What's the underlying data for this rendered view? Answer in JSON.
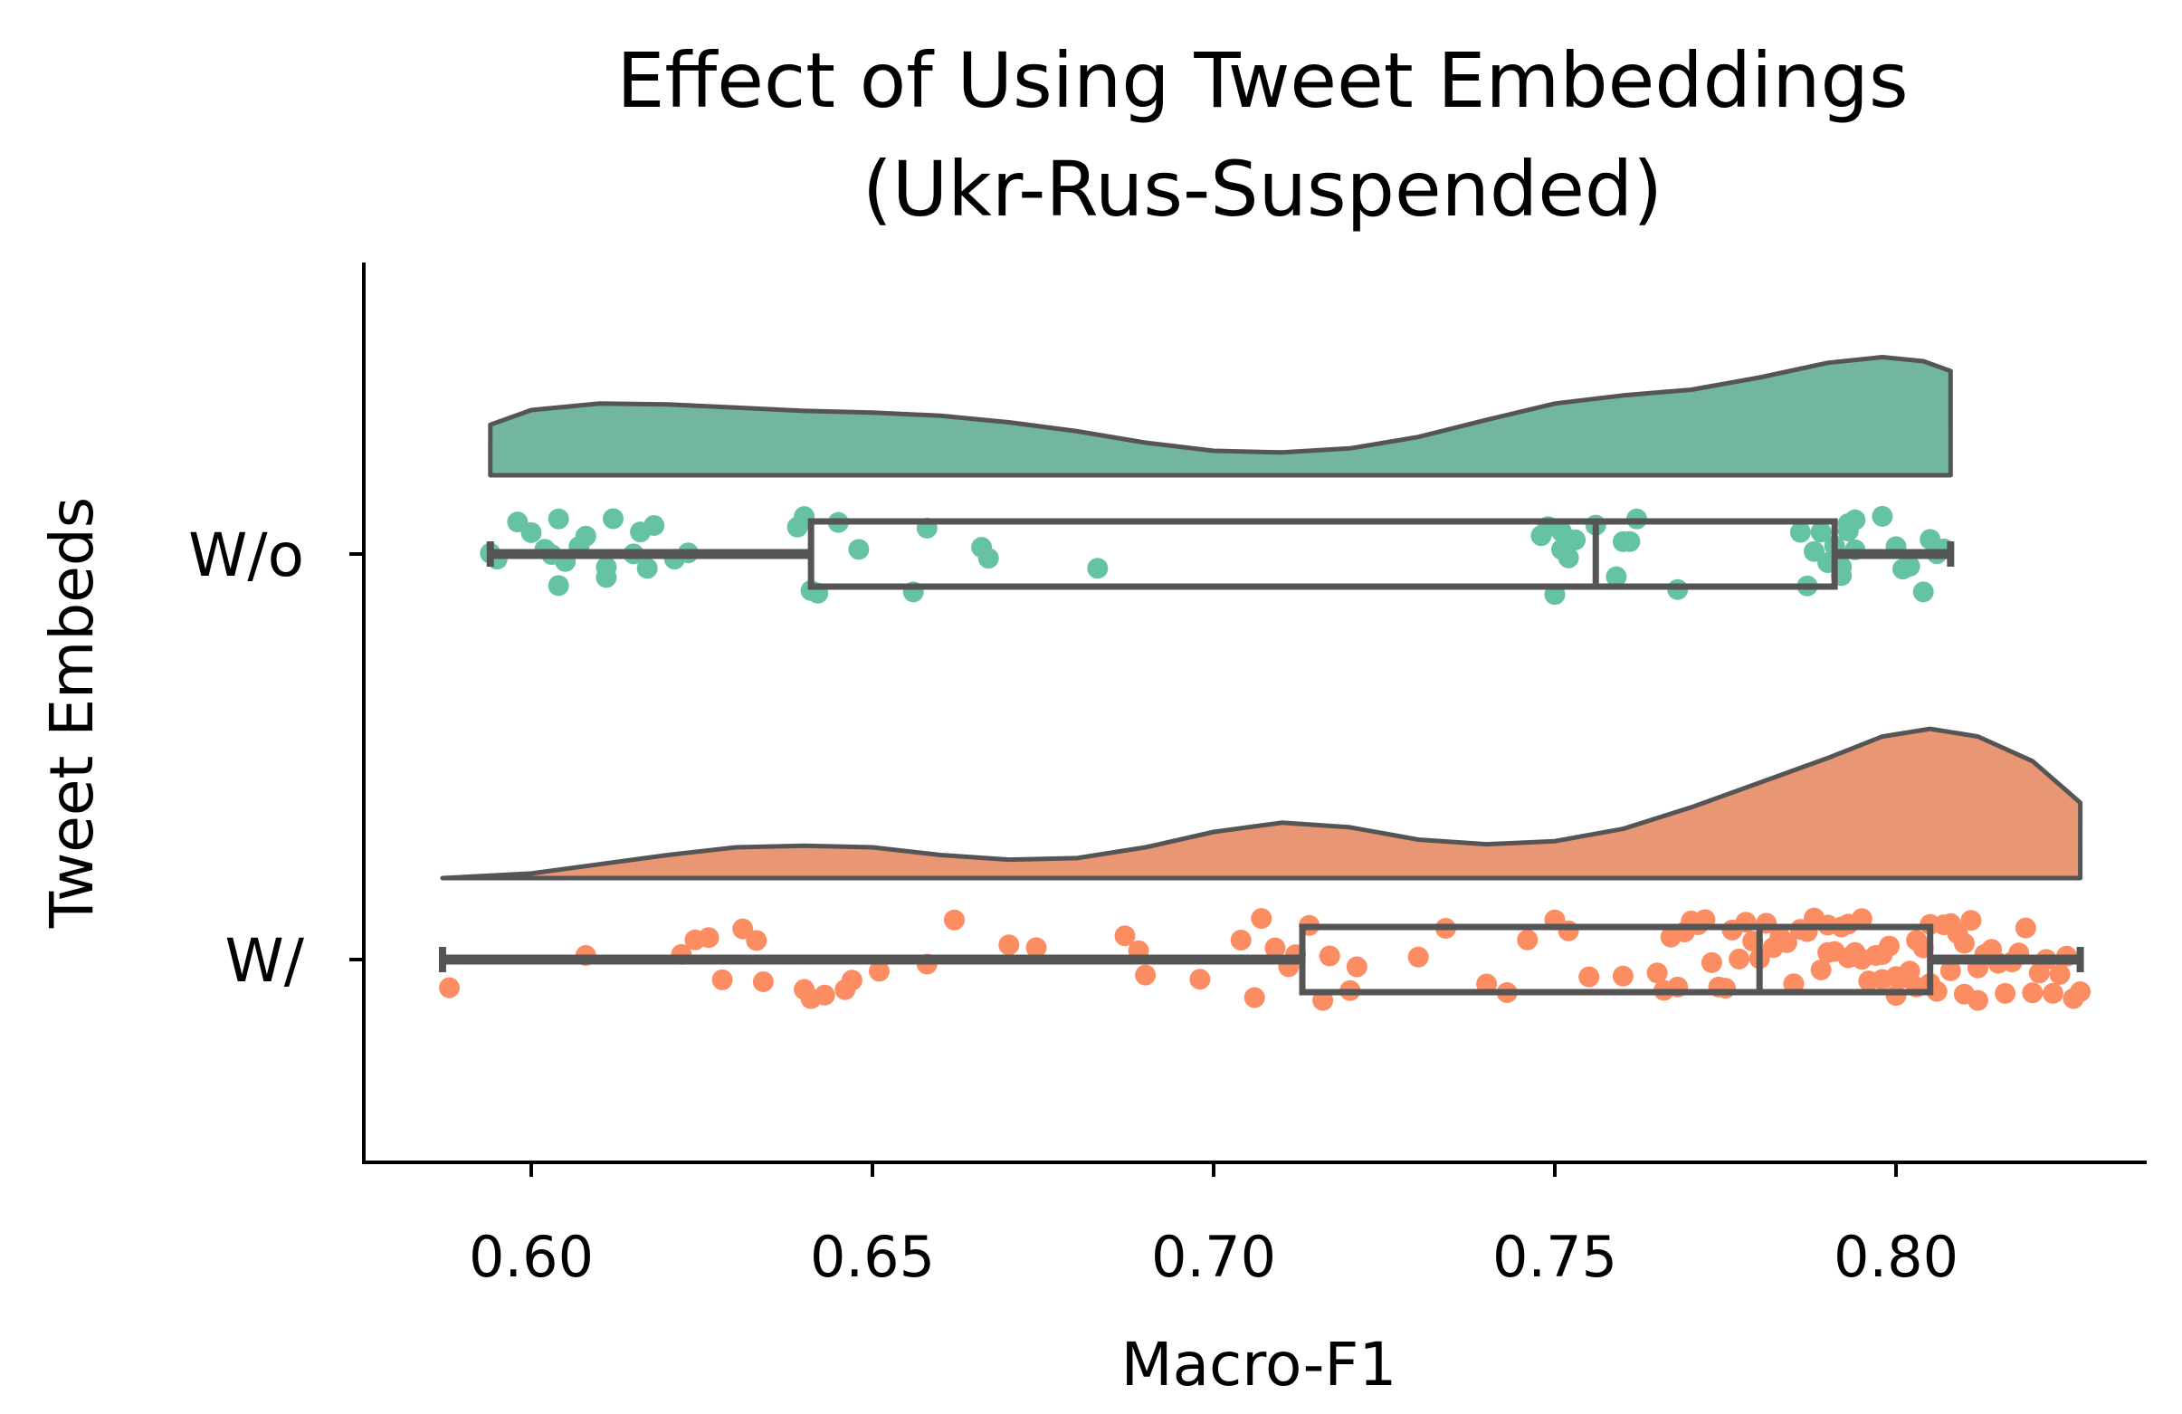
{
  "chart_data": {
    "type": "raincloud",
    "title": [
      "Effect of Using Tweet Embeddings",
      "(Ukr-Rus-Suspended)"
    ],
    "xlabel": "Macro-F1",
    "ylabel": "Tweet Embeds",
    "xlim": [
      0.575,
      0.838
    ],
    "xticks": [
      0.6,
      0.65,
      0.7,
      0.75,
      0.8
    ],
    "xtick_labels": [
      "0.60",
      "0.65",
      "0.70",
      "0.75",
      "0.80"
    ],
    "grid": false,
    "groups": [
      {
        "label": "W/o",
        "color": "#66c2a5",
        "cloud_color": "#73b6a0",
        "box": {
          "min": 0.594,
          "q1": 0.641,
          "median": 0.756,
          "q3": 0.791,
          "max": 0.808
        },
        "density": [
          [
            0.594,
            0.62
          ],
          [
            0.6,
            0.8
          ],
          [
            0.61,
            0.88
          ],
          [
            0.62,
            0.87
          ],
          [
            0.63,
            0.83
          ],
          [
            0.64,
            0.79
          ],
          [
            0.65,
            0.77
          ],
          [
            0.66,
            0.73
          ],
          [
            0.67,
            0.65
          ],
          [
            0.68,
            0.54
          ],
          [
            0.69,
            0.4
          ],
          [
            0.7,
            0.3
          ],
          [
            0.71,
            0.28
          ],
          [
            0.72,
            0.33
          ],
          [
            0.73,
            0.47
          ],
          [
            0.74,
            0.68
          ],
          [
            0.75,
            0.88
          ],
          [
            0.76,
            0.98
          ],
          [
            0.77,
            1.05
          ],
          [
            0.78,
            1.2
          ],
          [
            0.79,
            1.38
          ],
          [
            0.798,
            1.45
          ],
          [
            0.804,
            1.4
          ],
          [
            0.808,
            1.28
          ]
        ],
        "points": [
          0.594,
          0.595,
          0.598,
          0.6,
          0.602,
          0.603,
          0.604,
          0.604,
          0.605,
          0.607,
          0.608,
          0.611,
          0.611,
          0.612,
          0.615,
          0.616,
          0.617,
          0.618,
          0.621,
          0.623,
          0.639,
          0.64,
          0.641,
          0.642,
          0.645,
          0.648,
          0.656,
          0.658,
          0.666,
          0.667,
          0.683,
          0.748,
          0.749,
          0.75,
          0.751,
          0.751,
          0.752,
          0.753,
          0.756,
          0.759,
          0.76,
          0.761,
          0.762,
          0.768,
          0.786,
          0.787,
          0.788,
          0.789,
          0.79,
          0.791,
          0.792,
          0.792,
          0.793,
          0.793,
          0.794,
          0.794,
          0.798,
          0.8,
          0.801,
          0.802,
          0.804,
          0.805,
          0.806,
          0.806,
          0.807
        ]
      },
      {
        "label": "W/",
        "color": "#fc8d62",
        "cloud_color": "#e99675",
        "box": {
          "min": 0.587,
          "q1": 0.713,
          "median": 0.78,
          "q3": 0.805,
          "max": 0.827
        },
        "density": [
          [
            0.587,
            0.0
          ],
          [
            0.6,
            0.03
          ],
          [
            0.61,
            0.09
          ],
          [
            0.62,
            0.15
          ],
          [
            0.63,
            0.2
          ],
          [
            0.64,
            0.21
          ],
          [
            0.65,
            0.2
          ],
          [
            0.66,
            0.15
          ],
          [
            0.67,
            0.12
          ],
          [
            0.68,
            0.13
          ],
          [
            0.69,
            0.2
          ],
          [
            0.7,
            0.3
          ],
          [
            0.71,
            0.36
          ],
          [
            0.72,
            0.33
          ],
          [
            0.73,
            0.25
          ],
          [
            0.74,
            0.22
          ],
          [
            0.75,
            0.24
          ],
          [
            0.76,
            0.32
          ],
          [
            0.77,
            0.46
          ],
          [
            0.78,
            0.62
          ],
          [
            0.79,
            0.78
          ],
          [
            0.798,
            0.92
          ],
          [
            0.805,
            0.97
          ],
          [
            0.812,
            0.92
          ],
          [
            0.82,
            0.76
          ],
          [
            0.827,
            0.49
          ]
        ],
        "points": [
          0.588,
          0.608,
          0.622,
          0.624,
          0.626,
          0.628,
          0.631,
          0.633,
          0.634,
          0.64,
          0.641,
          0.643,
          0.646,
          0.647,
          0.651,
          0.658,
          0.662,
          0.67,
          0.674,
          0.687,
          0.689,
          0.69,
          0.698,
          0.704,
          0.706,
          0.707,
          0.709,
          0.711,
          0.712,
          0.714,
          0.716,
          0.717,
          0.72,
          0.721,
          0.73,
          0.734,
          0.74,
          0.743,
          0.746,
          0.75,
          0.752,
          0.755,
          0.76,
          0.765,
          0.766,
          0.767,
          0.768,
          0.769,
          0.77,
          0.771,
          0.772,
          0.773,
          0.774,
          0.775,
          0.776,
          0.777,
          0.778,
          0.779,
          0.78,
          0.781,
          0.782,
          0.783,
          0.784,
          0.785,
          0.786,
          0.787,
          0.788,
          0.789,
          0.79,
          0.791,
          0.792,
          0.793,
          0.794,
          0.795,
          0.796,
          0.797,
          0.798,
          0.799,
          0.8,
          0.801,
          0.802,
          0.803,
          0.804,
          0.805,
          0.806,
          0.807,
          0.808,
          0.809,
          0.81,
          0.811,
          0.812,
          0.813,
          0.814,
          0.815,
          0.816,
          0.817,
          0.818,
          0.819,
          0.82,
          0.821,
          0.822,
          0.823,
          0.824,
          0.825,
          0.826,
          0.827,
          0.79,
          0.795,
          0.8,
          0.805,
          0.81,
          0.815,
          0.812,
          0.808,
          0.803,
          0.798,
          0.793
        ]
      }
    ]
  }
}
